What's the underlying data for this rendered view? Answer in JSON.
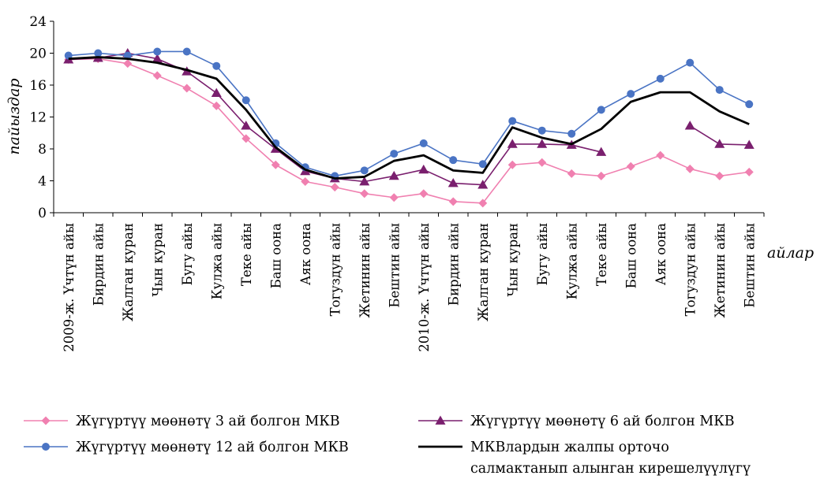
{
  "chart_data": {
    "type": "line",
    "ylabel": "пайыздар",
    "xlabel": "айлар",
    "ylim": [
      0,
      24
    ],
    "yticks": [
      0,
      4,
      8,
      12,
      16,
      20,
      24
    ],
    "grid": false,
    "legend_position": "bottom",
    "categories": [
      "2009-ж. Үчтүн айы",
      "Бирдин айы",
      "Жалган куран",
      "Чын куран",
      "Бугу айы",
      "Кулжа айы",
      "Теке айы",
      "Баш оона",
      "Аяк оона",
      "Тогуздун айы",
      "Жетинин айы",
      "Бештин айы",
      "2010-ж. Үчтүн айы",
      "Бирдин айы",
      "Жалган куран",
      "Чын куран",
      "Бугу айы",
      "Кулжа айы",
      "Теке айы",
      "Баш оона",
      "Аяк оона",
      "Тогуздун айы",
      "Жетинин айы",
      "Бештин айы"
    ],
    "series": [
      {
        "name": "Жүгүртүү мөөнөтү 3 ай болгон МКВ",
        "color": "#f080b0",
        "marker": "diamond",
        "values": [
          19.2,
          19.3,
          18.7,
          17.2,
          15.6,
          13.4,
          9.3,
          6.0,
          3.9,
          3.2,
          2.4,
          1.9,
          2.4,
          1.4,
          1.2,
          6.0,
          6.3,
          4.9,
          4.6,
          5.8,
          7.2,
          5.5,
          4.6,
          5.1
        ]
      },
      {
        "name": "Жүгүртүү мөөнөтү 6 ай болгон МКВ",
        "color": "#7a1f6e",
        "marker": "triangle",
        "values": [
          19.2,
          19.4,
          20.0,
          19.3,
          17.7,
          15.0,
          10.9,
          8.0,
          5.2,
          4.3,
          3.9,
          4.6,
          5.4,
          3.7,
          3.5,
          8.6,
          8.6,
          8.5,
          7.6,
          null,
          null,
          10.9,
          8.6,
          8.5
        ]
      },
      {
        "name": "Жүгүртүү мөөнөтү 12 ай болгон МКВ",
        "color": "#4a74c4",
        "marker": "circle",
        "values": [
          19.7,
          20.0,
          19.7,
          20.2,
          20.2,
          18.4,
          14.1,
          8.7,
          5.7,
          4.6,
          5.3,
          7.4,
          8.7,
          6.6,
          6.1,
          11.5,
          10.3,
          9.9,
          12.9,
          14.9,
          16.8,
          18.8,
          15.4,
          13.6
        ]
      },
      {
        "name": "МКВлардын жалпы орточо салмактанып алынган кирешелүүлүгү",
        "name_lines": [
          "МКВлардын жалпы орточо",
          "салмактанып алынган кирешелүүлүгү"
        ],
        "color": "#000000",
        "marker": "none",
        "values": [
          19.3,
          19.5,
          19.3,
          18.8,
          17.9,
          16.8,
          12.9,
          8.2,
          5.4,
          4.3,
          4.5,
          6.5,
          7.2,
          5.3,
          5.0,
          10.7,
          9.4,
          8.6,
          10.5,
          13.9,
          15.1,
          15.1,
          12.7,
          11.1
        ]
      }
    ]
  }
}
